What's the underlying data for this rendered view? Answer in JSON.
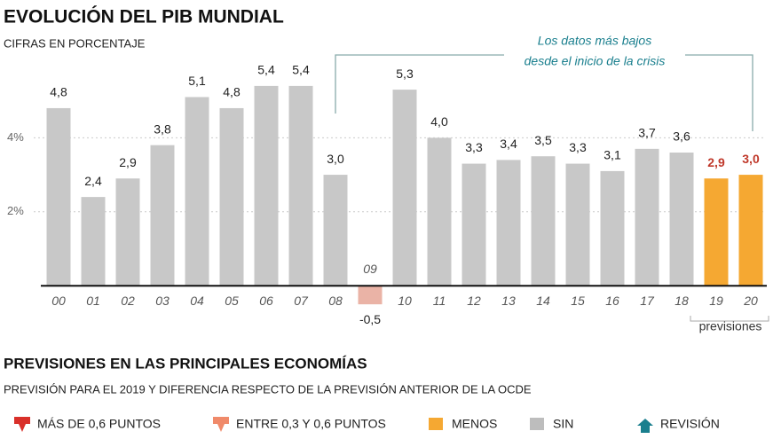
{
  "chart_data": {
    "type": "bar",
    "title": "EVOLUCIÓN DEL PIB MUNDIAL",
    "subtitle": "CIFRAS EN PORCENTAJE",
    "annotation_lines": [
      "Los datos más bajos",
      "desde el inicio de la crisis"
    ],
    "forecast_label": "previsiones",
    "categories": [
      "00",
      "01",
      "02",
      "03",
      "04",
      "05",
      "06",
      "07",
      "08",
      "09",
      "10",
      "11",
      "12",
      "13",
      "14",
      "15",
      "16",
      "17",
      "18",
      "19",
      "20"
    ],
    "values": [
      4.8,
      2.4,
      2.9,
      3.8,
      5.1,
      4.8,
      5.4,
      5.4,
      3.0,
      -0.5,
      5.3,
      4.0,
      3.3,
      3.4,
      3.5,
      3.3,
      3.1,
      3.7,
      3.6,
      2.9,
      3.0
    ],
    "value_labels": [
      "4,8",
      "2,4",
      "2,9",
      "3,8",
      "5,1",
      "4,8",
      "5,4",
      "5,4",
      "3,0",
      "-0,5",
      "5,3",
      "4,0",
      "3,3",
      "3,4",
      "3,5",
      "3,3",
      "3,1",
      "3,7",
      "3,6",
      "2,9",
      "3,0"
    ],
    "colors": [
      "#c8c8c8",
      "#c8c8c8",
      "#c8c8c8",
      "#c8c8c8",
      "#c8c8c8",
      "#c8c8c8",
      "#c8c8c8",
      "#c8c8c8",
      "#c8c8c8",
      "#eab3a6",
      "#c8c8c8",
      "#c8c8c8",
      "#c8c8c8",
      "#c8c8c8",
      "#c8c8c8",
      "#c8c8c8",
      "#c8c8c8",
      "#c8c8c8",
      "#c8c8c8",
      "#f5a832",
      "#f5a832"
    ],
    "value_label_colors": [
      "#222",
      "#222",
      "#222",
      "#222",
      "#222",
      "#222",
      "#222",
      "#222",
      "#222",
      "#222",
      "#222",
      "#222",
      "#222",
      "#222",
      "#222",
      "#222",
      "#222",
      "#222",
      "#222",
      "#c0392b",
      "#c0392b"
    ],
    "ylim": [
      -1,
      6.5
    ],
    "yticks": [
      {
        "value": 2,
        "label": "2%"
      },
      {
        "value": 4,
        "label": "4%"
      }
    ],
    "grid": true
  },
  "section": {
    "title": "PREVISIONES EN LAS PRINCIPALES ECONOMÍAS",
    "subtitle": "PREVISIÓN PARA EL 2019 Y DIFERENCIA RESPECTO DE LA PREVISIÓN ANTERIOR DE LA OCDE",
    "legend_items": [
      {
        "name": "MÁS DE 0,6 PUNTOS",
        "color": "#d9302a"
      },
      {
        "name": "ENTRE 0,3 Y 0,6 PUNTOS",
        "color": "#f08a6a"
      },
      {
        "name": "MENOS",
        "color": "#f5a832"
      },
      {
        "name": "SIN",
        "color": "#bdbdbd"
      },
      {
        "name": "REVISIÓN",
        "color": "#1a7f8e"
      }
    ]
  }
}
